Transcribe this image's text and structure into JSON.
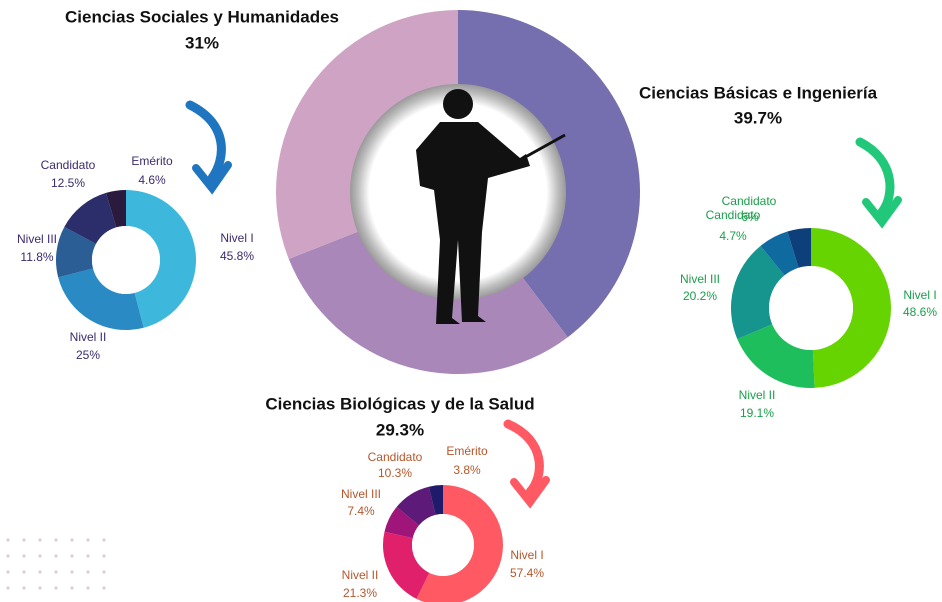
{
  "chart_data": [
    {
      "type": "donut",
      "categories": [
        "Ciencias Básicas e Ingeniería",
        "Ciencias Biológicas y de la Salud",
        "Ciencias Sociales y Humanidades"
      ],
      "values": [
        39.7,
        29.3,
        31
      ],
      "value_labels": [
        "39.7%",
        "29.3%",
        "31%"
      ],
      "colors": [
        "#756eaf",
        "#a987b8",
        "#cfa3c4"
      ]
    },
    {
      "type": "donut",
      "categories": [
        "Nivel I",
        "Nivel II",
        "Nivel III",
        "Candidato",
        "Emérito"
      ],
      "values": [
        45.8,
        25,
        11.8,
        12.5,
        4.6
      ],
      "value_labels": [
        "45.8%",
        "25%",
        "11.8%",
        "12.5%",
        "4.6%"
      ],
      "colors": [
        "#3db8dc",
        "#2a8ac4",
        "#2a5e94",
        "#2b2e6a",
        "#2a1a3e"
      ]
    },
    {
      "type": "donut",
      "categories": [
        "Nivel I",
        "Nivel II",
        "Nivel III",
        "Candidato",
        "Candidato"
      ],
      "values": [
        48.6,
        19.1,
        20.2,
        6,
        4.7
      ],
      "value_labels": [
        "48.6%",
        "19.1%",
        "20.2%",
        "6%",
        "4.7%"
      ],
      "colors": [
        "#66d400",
        "#1fbe5c",
        "#16948e",
        "#0f6aa0",
        "#0d3f7a"
      ]
    },
    {
      "type": "donut",
      "categories": [
        "Nivel I",
        "Nivel II",
        "Nivel III",
        "Candidato",
        "Emérito"
      ],
      "values": [
        57.4,
        21.3,
        7.4,
        10.3,
        3.8
      ],
      "value_labels": [
        "57.4%",
        "21.3%",
        "7.4%",
        "10.3%",
        "3.8%"
      ],
      "colors": [
        "#ff5964",
        "#e0206a",
        "#a0157a",
        "#5e1a78",
        "#1f1a6a"
      ]
    }
  ]
}
